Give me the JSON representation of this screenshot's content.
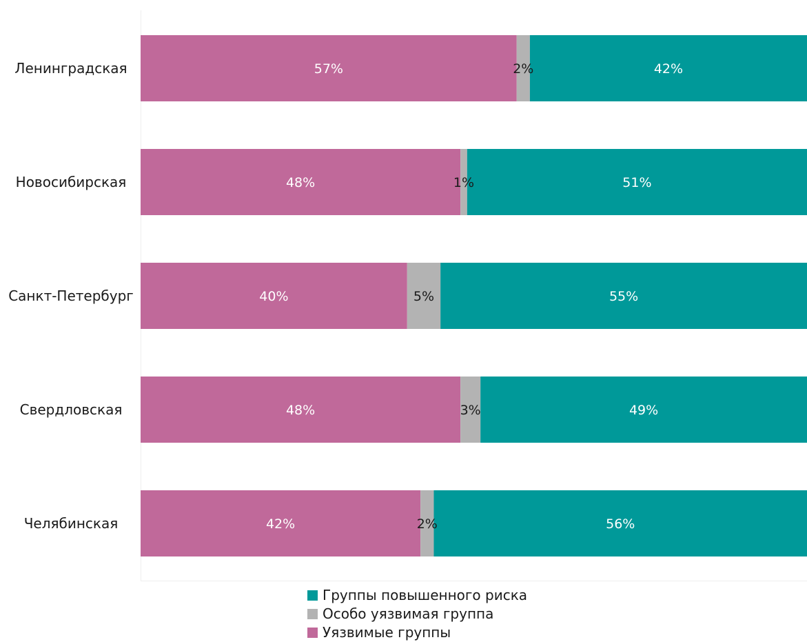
{
  "chart_data": {
    "type": "bar",
    "orientation": "horizontal",
    "stacked": true,
    "categories": [
      "Ленинградская",
      "Новосибирская",
      "Санкт-Петербург",
      "Свердловская",
      "Челябинская"
    ],
    "series": [
      {
        "name": "Уязвимые группы",
        "color": "#c0699a",
        "values": [
          57,
          48,
          40,
          48,
          42
        ],
        "labels": [
          "57%",
          "48%",
          "40%",
          "48%",
          "42%"
        ]
      },
      {
        "name": "Особо уязвимая группа",
        "color": "#b3b3b3",
        "values": [
          2,
          1,
          5,
          3,
          2
        ],
        "labels": [
          "2%",
          "1%",
          "5%",
          "3%",
          "2%"
        ]
      },
      {
        "name": "Группы повышенного риска",
        "color": "#009999",
        "values": [
          42,
          51,
          55,
          49,
          56
        ],
        "labels": [
          "42%",
          "51%",
          "55%",
          "49%",
          "56%"
        ]
      }
    ],
    "xlim": [
      0,
      100
    ],
    "grid": false,
    "legend_position": "bottom"
  },
  "legend": {
    "items": [
      {
        "label": "Группы повышенного риска",
        "color": "#009999",
        "icon": "square-swatch"
      },
      {
        "label": "Особо уязвимая группа",
        "color": "#b3b3b3",
        "icon": "square-swatch"
      },
      {
        "label": "Уязвимые группы",
        "color": "#c0699a",
        "icon": "square-swatch"
      }
    ]
  }
}
